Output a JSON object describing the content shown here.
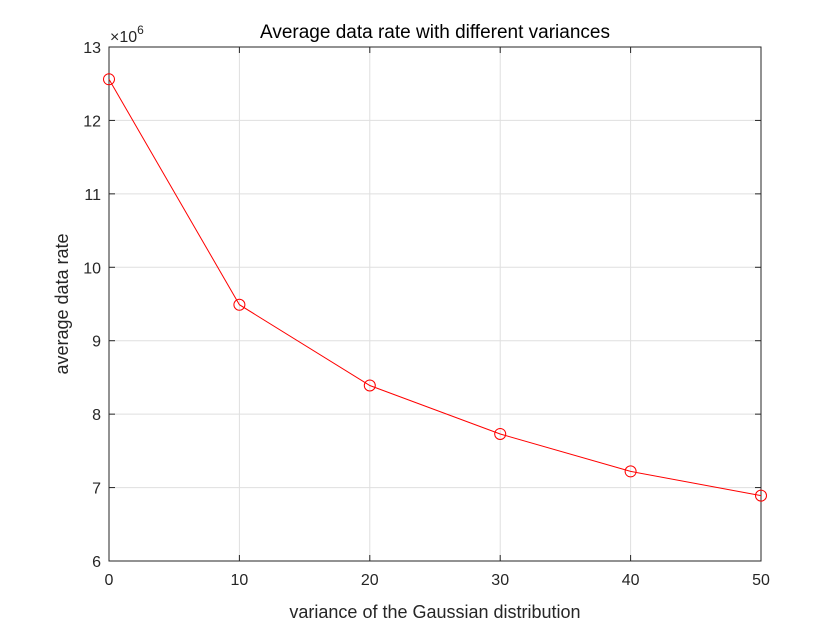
{
  "chart_data": {
    "type": "line",
    "title": "Average data rate with different variances",
    "xlabel": "variance of the Gaussian distribution",
    "ylabel": "average data rate",
    "y_exponent_prefix": "×10",
    "y_exponent_power": "6",
    "xlim": [
      0,
      50
    ],
    "ylim": [
      6,
      13
    ],
    "x_ticks": [
      0,
      10,
      20,
      30,
      40,
      50
    ],
    "y_ticks": [
      6,
      7,
      8,
      9,
      10,
      11,
      12,
      13
    ],
    "grid": true,
    "series": [
      {
        "color": "#ff0000",
        "marker": "circle",
        "x": [
          0,
          10,
          20,
          30,
          40,
          50
        ],
        "values": [
          12.56,
          9.49,
          8.39,
          7.73,
          7.22,
          6.89
        ]
      }
    ]
  }
}
